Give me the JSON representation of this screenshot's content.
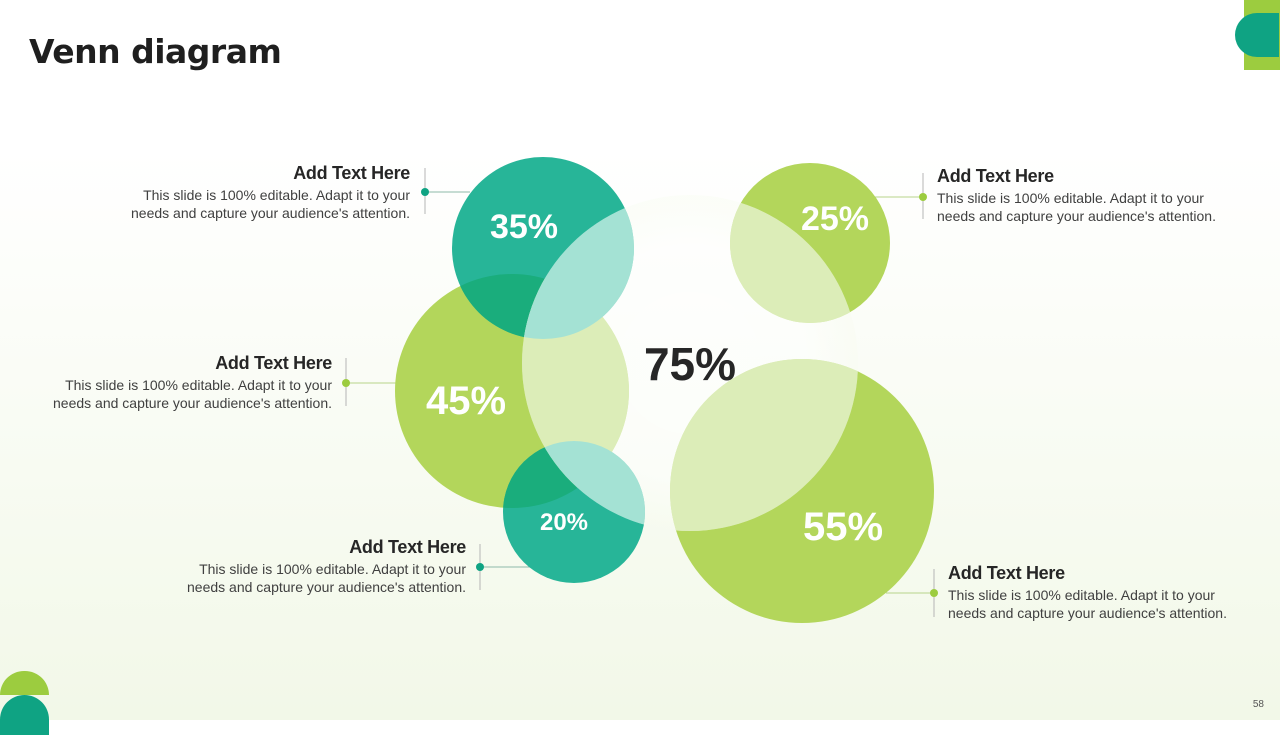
{
  "slide": {
    "title": "Venn diagram",
    "page_number": "58",
    "colors": {
      "teal": "#0fa383",
      "green": "#9ccc3f",
      "light_teal": "#a4e2d4",
      "light_green": "#dcedb8",
      "dark_text": "#262626"
    }
  },
  "diagram": {
    "center_label": "75%",
    "circles": [
      {
        "id": "c35",
        "label": "35%",
        "value": 35,
        "color": "teal"
      },
      {
        "id": "c45",
        "label": "45%",
        "value": 45,
        "color": "green"
      },
      {
        "id": "c20",
        "label": "20%",
        "value": 20,
        "color": "teal"
      },
      {
        "id": "c25",
        "label": "25%",
        "value": 25,
        "color": "green"
      },
      {
        "id": "c55",
        "label": "55%",
        "value": 55,
        "color": "green"
      }
    ]
  },
  "callouts": [
    {
      "heading": "Add Text Here",
      "text_line1": "This slide is 100% editable. Adapt it to your",
      "text_line2": "needs and capture your audience's attention."
    },
    {
      "heading": "Add Text Here",
      "text_line1": "This slide is 100% editable. Adapt it to your",
      "text_line2": "needs and capture your audience's attention."
    },
    {
      "heading": "Add Text Here",
      "text_line1": "This slide is 100% editable. Adapt it to your",
      "text_line2": "needs and capture your audience's attention."
    },
    {
      "heading": "Add Text Here",
      "text_line1": "This slide is 100% editable. Adapt it to your",
      "text_line2": "needs and capture your audience's attention."
    },
    {
      "heading": "Add Text Here",
      "text_line1": "This slide is 100% editable. Adapt it to your",
      "text_line2": "needs and capture your audience's attention."
    }
  ]
}
